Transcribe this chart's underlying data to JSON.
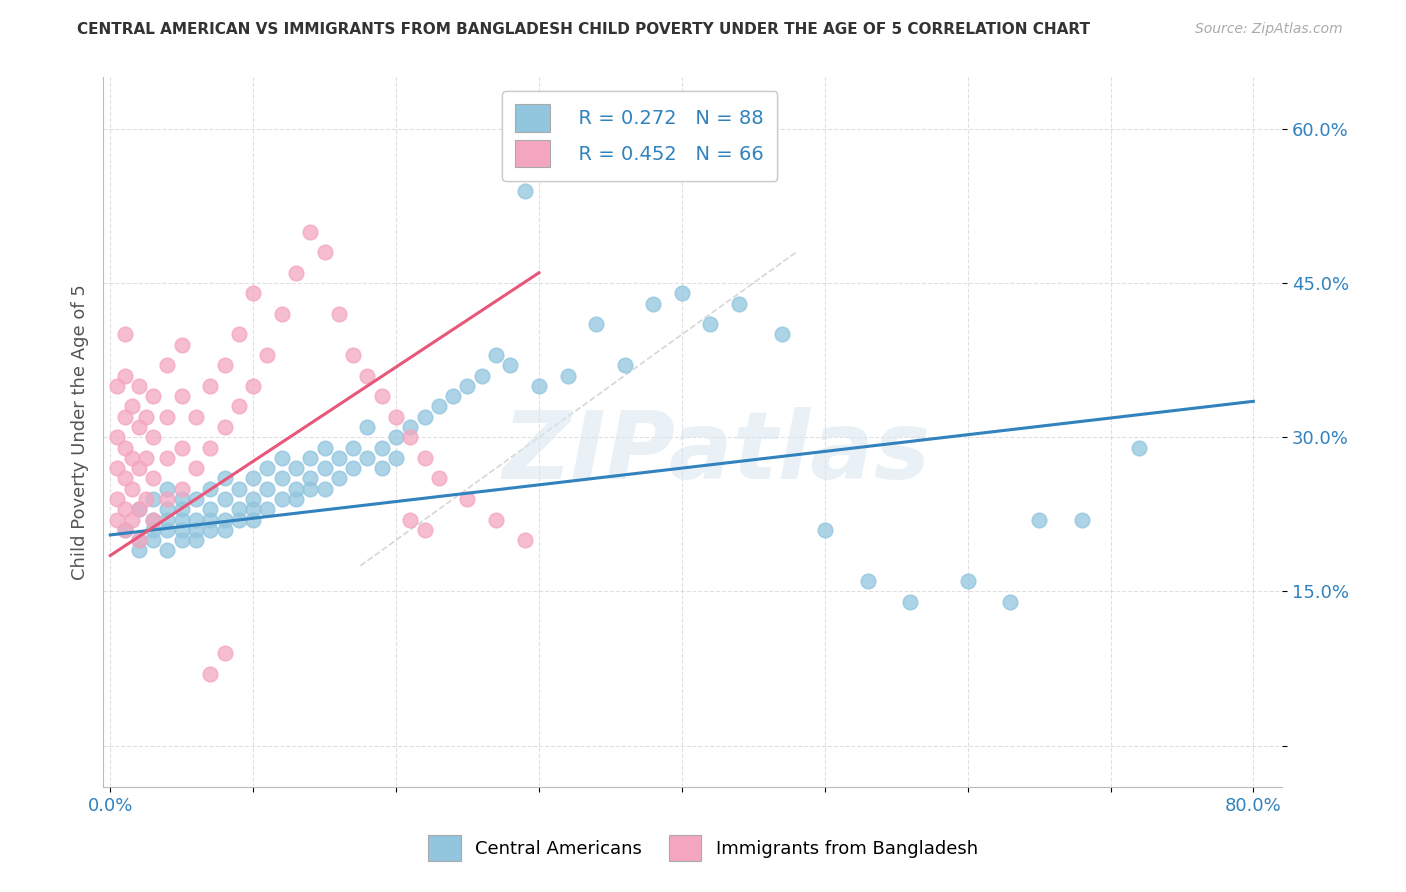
{
  "title": "CENTRAL AMERICAN VS IMMIGRANTS FROM BANGLADESH CHILD POVERTY UNDER THE AGE OF 5 CORRELATION CHART",
  "source": "Source: ZipAtlas.com",
  "ylabel": "Child Poverty Under the Age of 5",
  "xlim": [
    -0.005,
    0.82
  ],
  "ylim": [
    -0.04,
    0.65
  ],
  "xticks": [
    0.0,
    0.1,
    0.2,
    0.3,
    0.4,
    0.5,
    0.6,
    0.7,
    0.8
  ],
  "xticklabels": [
    "0.0%",
    "",
    "",
    "",
    "",
    "",
    "",
    "",
    "80.0%"
  ],
  "yticks": [
    0.0,
    0.15,
    0.3,
    0.45,
    0.6
  ],
  "yticklabels": [
    "",
    "15.0%",
    "30.0%",
    "45.0%",
    "60.0%"
  ],
  "legend_R1": "R = 0.272",
  "legend_N1": "N = 88",
  "legend_R2": "R = 0.452",
  "legend_N2": "N = 66",
  "blue_color": "#92c5de",
  "pink_color": "#f4a6c0",
  "blue_line_color": "#3182bd",
  "pink_line_color": "#e8567a",
  "diag_line_color": "#cccccc",
  "watermark": "ZIPatlas",
  "blue_scatter_x": [
    0.01,
    0.02,
    0.02,
    0.02,
    0.03,
    0.03,
    0.03,
    0.03,
    0.04,
    0.04,
    0.04,
    0.04,
    0.04,
    0.05,
    0.05,
    0.05,
    0.05,
    0.05,
    0.06,
    0.06,
    0.06,
    0.06,
    0.07,
    0.07,
    0.07,
    0.07,
    0.08,
    0.08,
    0.08,
    0.08,
    0.09,
    0.09,
    0.09,
    0.1,
    0.1,
    0.1,
    0.1,
    0.11,
    0.11,
    0.11,
    0.12,
    0.12,
    0.12,
    0.13,
    0.13,
    0.13,
    0.14,
    0.14,
    0.14,
    0.15,
    0.15,
    0.15,
    0.16,
    0.16,
    0.17,
    0.17,
    0.18,
    0.18,
    0.19,
    0.19,
    0.2,
    0.2,
    0.21,
    0.22,
    0.23,
    0.24,
    0.25,
    0.26,
    0.27,
    0.28,
    0.29,
    0.3,
    0.32,
    0.34,
    0.36,
    0.38,
    0.4,
    0.42,
    0.44,
    0.47,
    0.5,
    0.53,
    0.56,
    0.6,
    0.63,
    0.65,
    0.68,
    0.72
  ],
  "blue_scatter_y": [
    0.21,
    0.2,
    0.23,
    0.19,
    0.22,
    0.21,
    0.24,
    0.2,
    0.21,
    0.23,
    0.19,
    0.22,
    0.25,
    0.2,
    0.22,
    0.21,
    0.24,
    0.23,
    0.21,
    0.22,
    0.24,
    0.2,
    0.22,
    0.25,
    0.21,
    0.23,
    0.22,
    0.24,
    0.26,
    0.21,
    0.23,
    0.25,
    0.22,
    0.24,
    0.22,
    0.26,
    0.23,
    0.25,
    0.23,
    0.27,
    0.24,
    0.26,
    0.28,
    0.25,
    0.27,
    0.24,
    0.26,
    0.28,
    0.25,
    0.27,
    0.25,
    0.29,
    0.26,
    0.28,
    0.27,
    0.29,
    0.28,
    0.31,
    0.29,
    0.27,
    0.3,
    0.28,
    0.31,
    0.32,
    0.33,
    0.34,
    0.35,
    0.36,
    0.38,
    0.37,
    0.54,
    0.35,
    0.36,
    0.41,
    0.37,
    0.43,
    0.44,
    0.41,
    0.43,
    0.4,
    0.21,
    0.16,
    0.14,
    0.16,
    0.14,
    0.22,
    0.22,
    0.29
  ],
  "pink_scatter_x": [
    0.005,
    0.005,
    0.005,
    0.005,
    0.005,
    0.01,
    0.01,
    0.01,
    0.01,
    0.01,
    0.01,
    0.01,
    0.015,
    0.015,
    0.015,
    0.015,
    0.02,
    0.02,
    0.02,
    0.02,
    0.02,
    0.025,
    0.025,
    0.025,
    0.03,
    0.03,
    0.03,
    0.03,
    0.04,
    0.04,
    0.04,
    0.04,
    0.05,
    0.05,
    0.05,
    0.05,
    0.06,
    0.06,
    0.07,
    0.07,
    0.08,
    0.08,
    0.09,
    0.09,
    0.1,
    0.1,
    0.11,
    0.12,
    0.13,
    0.14,
    0.15,
    0.16,
    0.17,
    0.18,
    0.19,
    0.2,
    0.21,
    0.22,
    0.23,
    0.25,
    0.27,
    0.29,
    0.21,
    0.22,
    0.07,
    0.08
  ],
  "pink_scatter_y": [
    0.22,
    0.24,
    0.27,
    0.3,
    0.35,
    0.21,
    0.23,
    0.26,
    0.29,
    0.32,
    0.36,
    0.4,
    0.22,
    0.25,
    0.28,
    0.33,
    0.2,
    0.23,
    0.27,
    0.31,
    0.35,
    0.24,
    0.28,
    0.32,
    0.22,
    0.26,
    0.3,
    0.34,
    0.24,
    0.28,
    0.32,
    0.37,
    0.25,
    0.29,
    0.34,
    0.39,
    0.27,
    0.32,
    0.29,
    0.35,
    0.31,
    0.37,
    0.33,
    0.4,
    0.35,
    0.44,
    0.38,
    0.42,
    0.46,
    0.5,
    0.48,
    0.42,
    0.38,
    0.36,
    0.34,
    0.32,
    0.3,
    0.28,
    0.26,
    0.24,
    0.22,
    0.2,
    0.22,
    0.21,
    0.07,
    0.09
  ],
  "blue_line_x": [
    0.0,
    0.8
  ],
  "blue_line_y": [
    0.205,
    0.335
  ],
  "pink_line_x": [
    0.0,
    0.3
  ],
  "pink_line_y": [
    0.185,
    0.46
  ],
  "diag_line_x": [
    0.175,
    0.48
  ],
  "diag_line_y": [
    0.175,
    0.48
  ]
}
